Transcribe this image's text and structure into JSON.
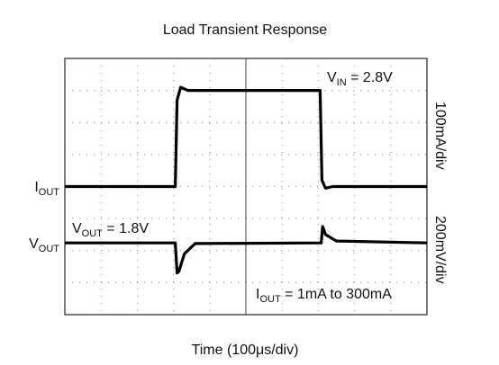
{
  "chart_data": {
    "type": "line",
    "title": "Load Transient Response",
    "x_label": "Time (100μs/div)",
    "right_labels": [
      "100mA/div",
      "200mV/div"
    ],
    "trace_labels": [
      {
        "text": "I",
        "subscript": "OUT",
        "rest": ""
      },
      {
        "text": "V",
        "subscript": "OUT",
        "rest": ""
      }
    ],
    "annotations": [
      {
        "text": "V",
        "subscript": "IN",
        "rest": " = 2.8V"
      },
      {
        "text": "V",
        "subscript": "OUT",
        "rest": " = 1.8V"
      },
      {
        "text": "I",
        "subscript": "OUT",
        "rest": " = 1mA to 300mA"
      }
    ],
    "xlim": [
      0,
      10
    ],
    "ylim": [
      0,
      8
    ],
    "grid": true,
    "series": [
      {
        "color": "#000000",
        "x": [
          0,
          3.05,
          3.1,
          3.2,
          3.4,
          7.05,
          7.1,
          7.2,
          7.4,
          10
        ],
        "values": [
          4,
          4,
          6.7,
          7.1,
          7.0,
          7.0,
          4.2,
          3.95,
          4,
          4
        ]
      },
      {
        "color": "#000000",
        "x": [
          0,
          3.05,
          3.1,
          3.15,
          3.3,
          3.6,
          7.08,
          7.12,
          7.2,
          7.5,
          10
        ],
        "values": [
          2.24,
          2.24,
          1.3,
          1.35,
          1.9,
          2.22,
          2.24,
          2.75,
          2.5,
          2.3,
          2.24
        ]
      }
    ]
  }
}
